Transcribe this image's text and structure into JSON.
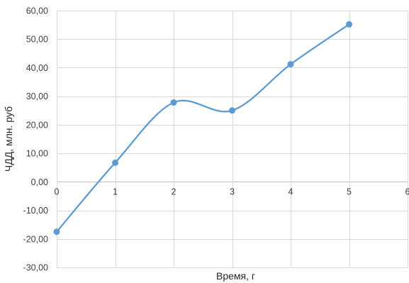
{
  "chart_data": {
    "type": "line",
    "smooth": true,
    "title": "",
    "xlabel": "Время, г",
    "ylabel": "ЧДД, млн. руб",
    "x": [
      0,
      1,
      2,
      3,
      4,
      5
    ],
    "xlim": [
      0,
      6
    ],
    "ylim": [
      -30,
      60
    ],
    "xticks": [
      0,
      1,
      2,
      3,
      4,
      5,
      6
    ],
    "yticks": [
      -30,
      -20,
      -10,
      0,
      10,
      20,
      30,
      40,
      50,
      60
    ],
    "grid": true,
    "legend": "none",
    "series": [
      {
        "values": [
          -17.5,
          6.7,
          27.8,
          25.0,
          41.2,
          55.2
        ],
        "color": "#5b9bd5"
      }
    ]
  }
}
